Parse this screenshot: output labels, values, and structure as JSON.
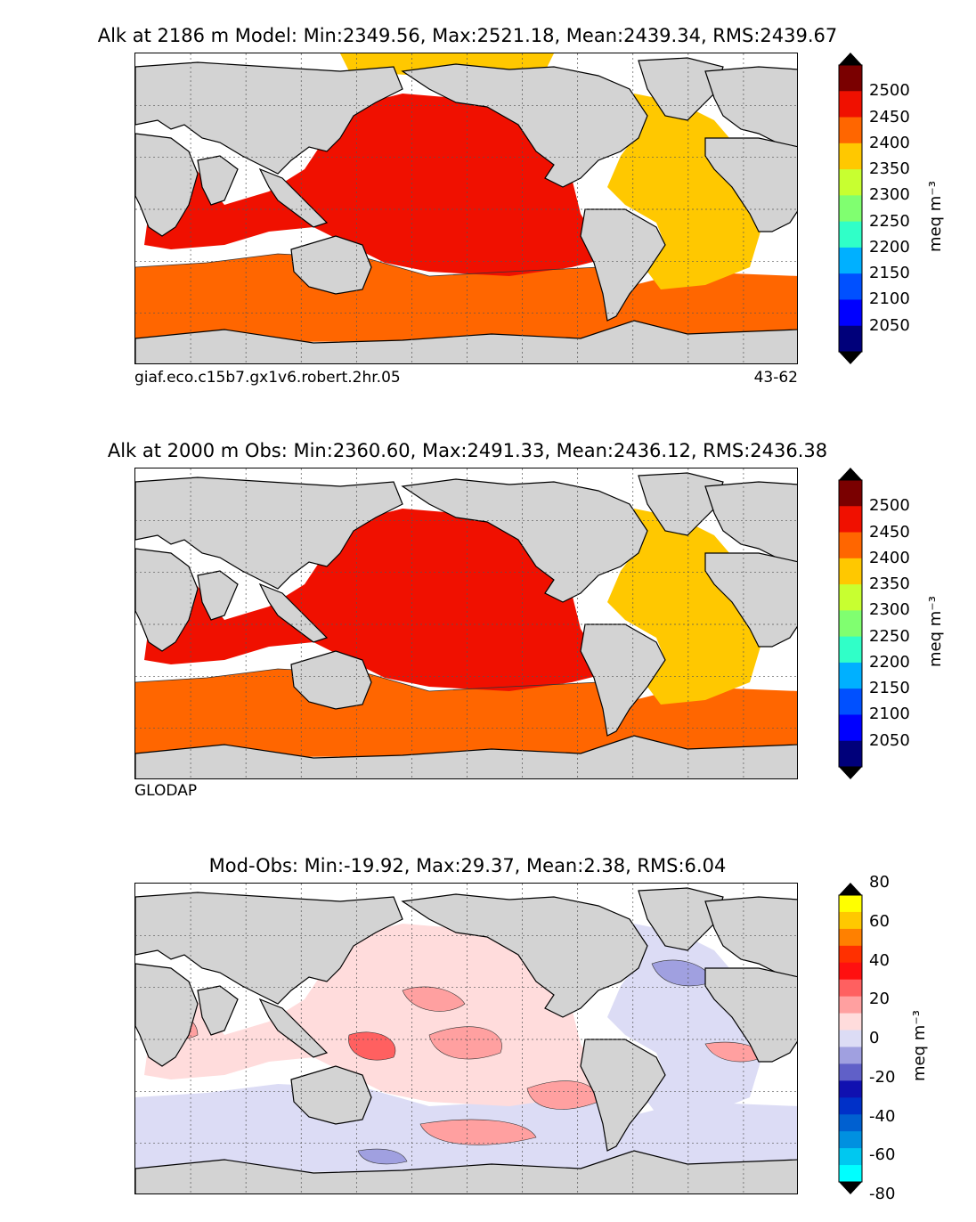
{
  "panels": [
    {
      "id": "model",
      "title": "Alk at 2186 m Model: Min:2349.56, Max:2521.18, Mean:2439.34, RMS:2439.67",
      "caption_left": "giaf.eco.c15b7.gx1v6.robert.2hr.05",
      "caption_right": "43-62",
      "colorbar": {
        "unit": "meq m⁻³",
        "ticks": [
          "2500",
          "2450",
          "2400",
          "2350",
          "2300",
          "2250",
          "2200",
          "2150",
          "2100",
          "2050"
        ],
        "colors": [
          "#7a0000",
          "#f01000",
          "#ff6600",
          "#ffc800",
          "#c8ff30",
          "#80ff70",
          "#30ffc8",
          "#00b0ff",
          "#0050ff",
          "#0000ff",
          "#00007a"
        ],
        "over_color": "#000000",
        "under_color": "#000000"
      },
      "fills": {
        "ocean_a": "#f01000",
        "ocean_b": "#ffc800",
        "south": "#ff6600",
        "arctic": "#ffc800"
      }
    },
    {
      "id": "obs",
      "title": "Alk at 2000 m Obs: Min:2360.60, Max:2491.33, Mean:2436.12, RMS:2436.38",
      "caption_left": "GLODAP",
      "caption_right": "",
      "colorbar": {
        "unit": "meq m⁻³",
        "ticks": [
          "2500",
          "2450",
          "2400",
          "2350",
          "2300",
          "2250",
          "2200",
          "2150",
          "2100",
          "2050"
        ],
        "colors": [
          "#7a0000",
          "#f01000",
          "#ff6600",
          "#ffc800",
          "#c8ff30",
          "#80ff70",
          "#30ffc8",
          "#00b0ff",
          "#0050ff",
          "#0000ff",
          "#00007a"
        ],
        "over_color": "#000000",
        "under_color": "#000000"
      },
      "fills": {
        "ocean_a": "#f01000",
        "ocean_b": "#ffc800",
        "south": "#ff6600",
        "arctic": "#ffffff"
      }
    },
    {
      "id": "diff",
      "title": "Mod-Obs: Min:-19.92, Max:29.37, Mean:2.38, RMS:6.04",
      "caption_left": "",
      "caption_right": "",
      "colorbar": {
        "unit": "meq m⁻³",
        "ticks": [
          "80",
          "60",
          "40",
          "20",
          "0",
          "-20",
          "-40",
          "-60",
          "-80"
        ],
        "colors": [
          "#ffff00",
          "#ffc800",
          "#ff8000",
          "#ff3000",
          "#ff1010",
          "#ff6060",
          "#ffa0a0",
          "#ffdcdc",
          "#dcdcf5",
          "#a0a0e0",
          "#6060c8",
          "#1010b0",
          "#0030c8",
          "#0060d0",
          "#0090e0",
          "#00c8f0",
          "#00ffff"
        ],
        "over_color": "#000000",
        "under_color": "#000000"
      },
      "fills": {
        "ocean_a": "#ffdcdc",
        "ocean_b": "#dcdcf5",
        "south": "#dcdcf5",
        "arctic": "#ffffff"
      }
    }
  ]
}
